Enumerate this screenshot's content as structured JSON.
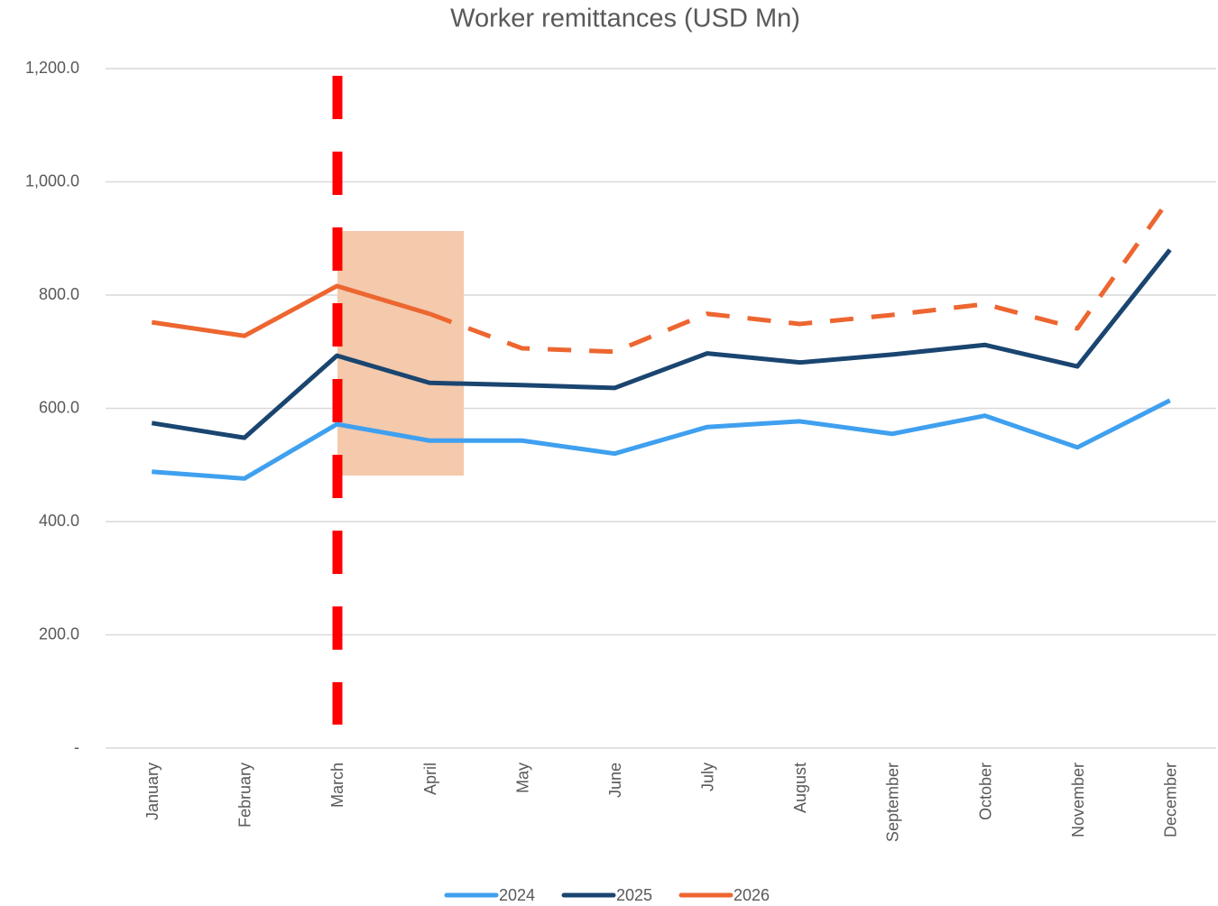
{
  "chart_data": {
    "type": "line",
    "title": "Worker remittances (USD Mn)",
    "categories": [
      "January",
      "February",
      "March",
      "April",
      "May",
      "June",
      "July",
      "August",
      "September",
      "October",
      "November",
      "December"
    ],
    "series": [
      {
        "name": "2024",
        "color": "#3fa0ef",
        "values": [
          488,
          476,
          572,
          543,
          543,
          520,
          567,
          577,
          555,
          587,
          531,
          614
        ]
      },
      {
        "name": "2025",
        "color": "#1a4570",
        "values": [
          574,
          548,
          693,
          645,
          641,
          636,
          697,
          681,
          695,
          712,
          674,
          880
        ]
      },
      {
        "name": "2026",
        "color": "#ed6630",
        "values": [
          752,
          728,
          816,
          767,
          706,
          700,
          767,
          749,
          765,
          784,
          741,
          971
        ],
        "dashed_after": 3
      }
    ],
    "ylim": [
      0,
      1200
    ],
    "yticks": [
      {
        "value": 0,
        "label": "-"
      },
      {
        "value": 200,
        "label": "200.0"
      },
      {
        "value": 400,
        "label": "400.0"
      },
      {
        "value": 600,
        "label": "600.0"
      },
      {
        "value": 800,
        "label": "800.0"
      },
      {
        "value": 1000,
        "label": "1,000.0"
      },
      {
        "value": 1200,
        "label": "1,200.0"
      }
    ],
    "grid": true,
    "legend": "bottom"
  }
}
